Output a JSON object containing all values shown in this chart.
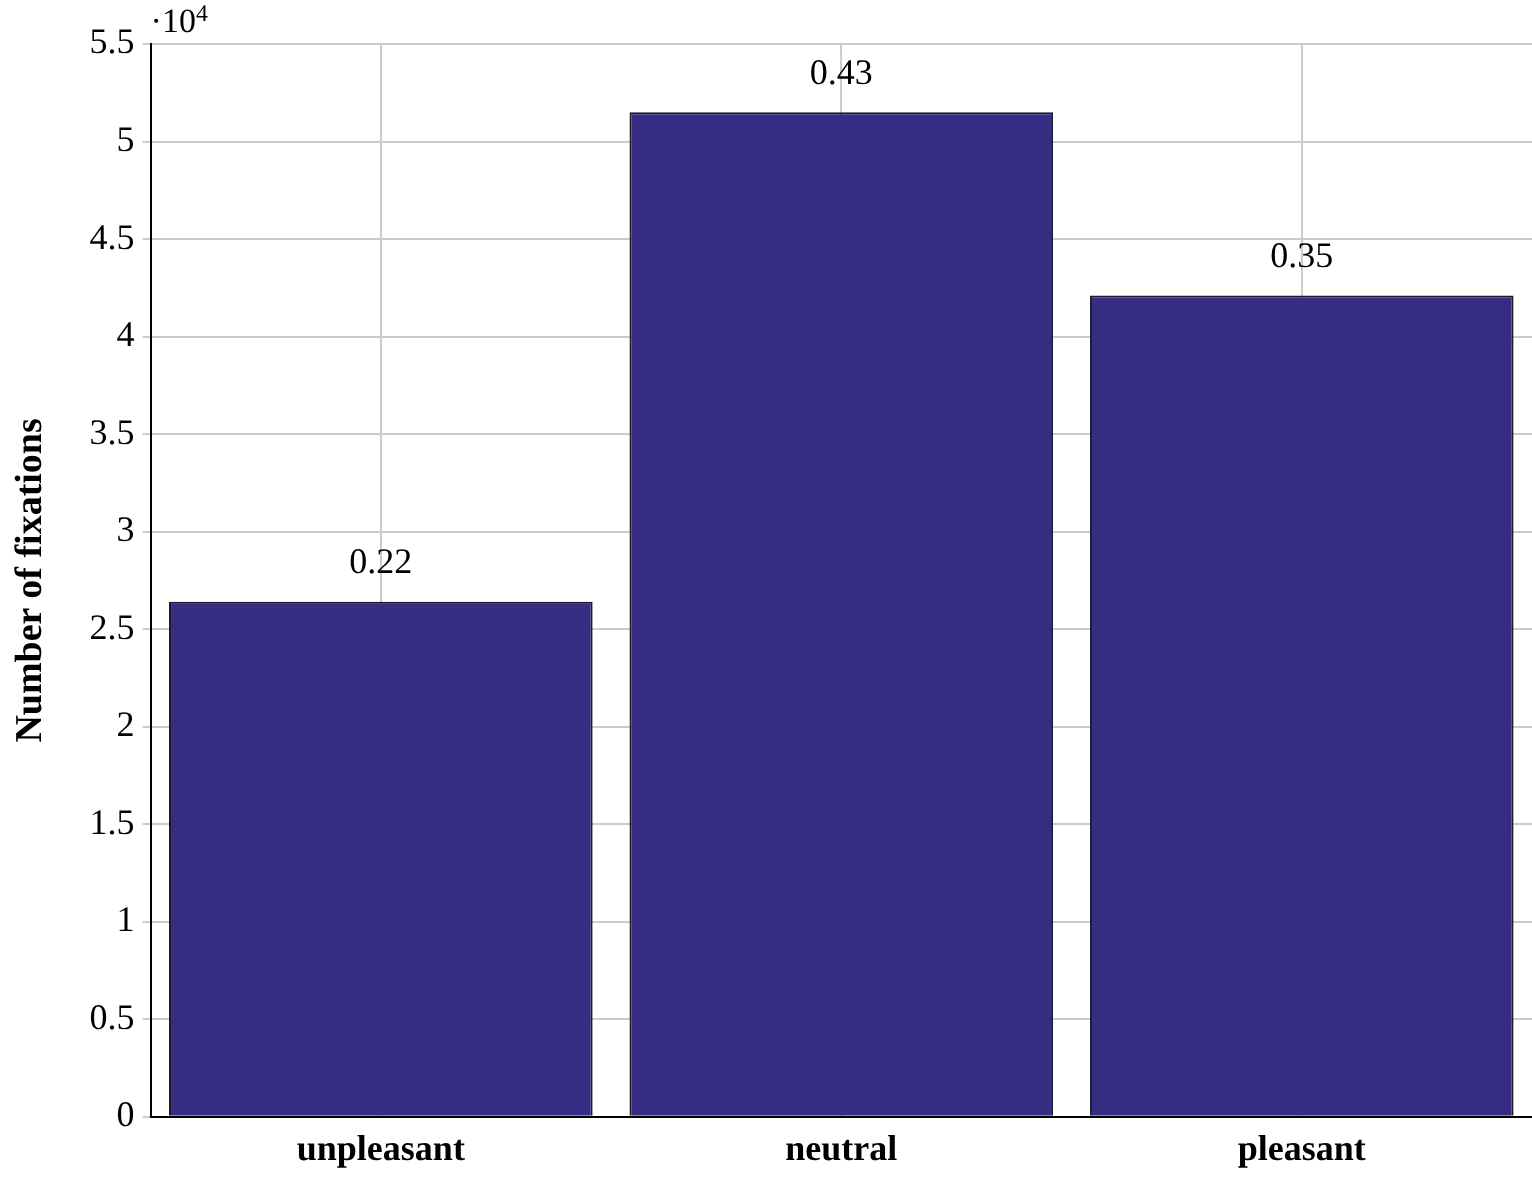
{
  "chart_data": {
    "type": "bar",
    "ylabel": "Number of fixations",
    "categories": [
      "unpleasant",
      "neutral",
      "pleasant"
    ],
    "values": [
      2.64,
      5.15,
      4.21
    ],
    "color": "#372c83",
    "ylim": [
      0,
      5.5
    ],
    "yticks": [
      0,
      0.5,
      1,
      1.5,
      2,
      2.5,
      3,
      3.5,
      4,
      4.5,
      5,
      5.5
    ],
    "grid": true,
    "annotations": [
      "·10$^{4}$",
      {
        "text": "0.22",
        "x": "unpleasant",
        "y": 2.64
      },
      {
        "text": "0.43",
        "x": "neutral",
        "y": 5.15
      },
      {
        "text": "0.35",
        "x": "pleasant",
        "y": 4.21
      }
    ]
  }
}
